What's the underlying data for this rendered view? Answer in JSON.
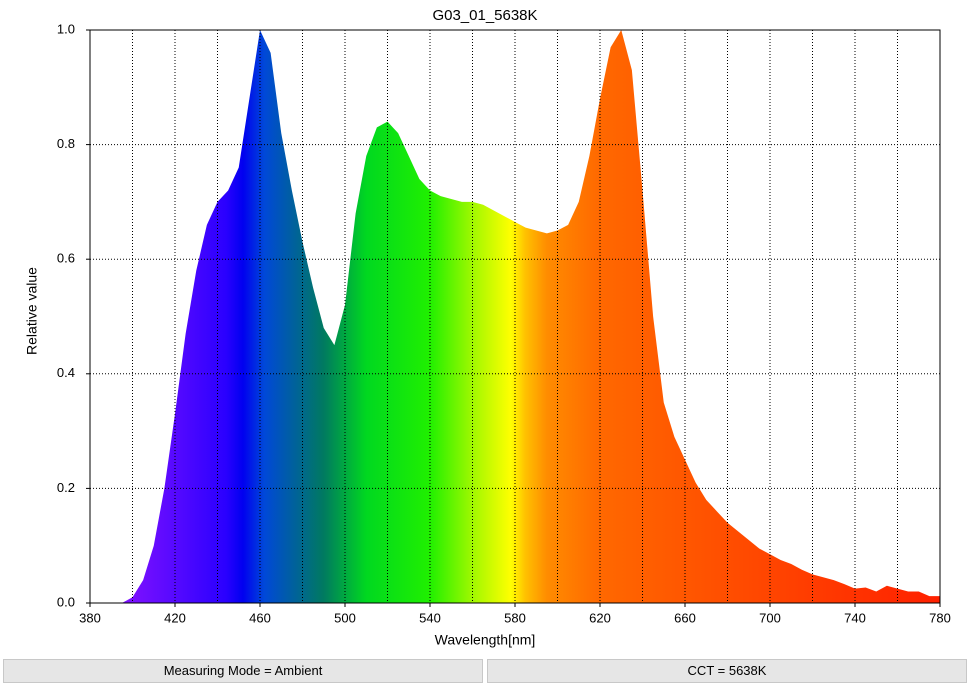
{
  "chart_data": {
    "type": "area",
    "title": "G03_01_5638K",
    "x_label": "Wavelength[nm]",
    "y_label": "Relative value",
    "x": [
      380,
      385,
      390,
      395,
      400,
      405,
      410,
      415,
      420,
      425,
      430,
      435,
      440,
      445,
      450,
      455,
      460,
      465,
      470,
      475,
      480,
      485,
      490,
      495,
      500,
      505,
      510,
      515,
      520,
      525,
      530,
      535,
      540,
      545,
      550,
      555,
      560,
      565,
      570,
      575,
      580,
      585,
      590,
      595,
      600,
      605,
      610,
      615,
      620,
      625,
      630,
      635,
      640,
      645,
      650,
      655,
      660,
      665,
      670,
      675,
      680,
      685,
      690,
      695,
      700,
      705,
      710,
      715,
      720,
      725,
      730,
      735,
      740,
      745,
      750,
      755,
      760,
      765,
      770,
      775,
      780
    ],
    "values": [
      0,
      0,
      0,
      0,
      0.01,
      0.04,
      0.1,
      0.2,
      0.33,
      0.47,
      0.58,
      0.66,
      0.7,
      0.72,
      0.76,
      0.88,
      1.0,
      0.96,
      0.82,
      0.72,
      0.63,
      0.55,
      0.48,
      0.45,
      0.52,
      0.68,
      0.78,
      0.83,
      0.84,
      0.82,
      0.78,
      0.74,
      0.72,
      0.71,
      0.705,
      0.7,
      0.7,
      0.695,
      0.685,
      0.675,
      0.665,
      0.655,
      0.65,
      0.645,
      0.65,
      0.66,
      0.7,
      0.78,
      0.88,
      0.97,
      1.0,
      0.93,
      0.72,
      0.5,
      0.35,
      0.29,
      0.25,
      0.21,
      0.18,
      0.16,
      0.14,
      0.125,
      0.11,
      0.095,
      0.085,
      0.075,
      0.068,
      0.058,
      0.05,
      0.045,
      0.04,
      0.033,
      0.025,
      0.027,
      0.02,
      0.03,
      0.025,
      0.02,
      0.02,
      0.012,
      0.012
    ],
    "xlim": [
      380,
      780
    ],
    "ylim": [
      0,
      1
    ],
    "xticks": [
      380,
      420,
      460,
      500,
      540,
      580,
      620,
      660,
      700,
      740,
      780
    ],
    "yticks": [
      {
        "value": 0,
        "label": "0.0"
      },
      0.2,
      0.4,
      0.6,
      0.8,
      {
        "value": 1,
        "label": "1.0"
      }
    ],
    "grid": true
  },
  "status_bar": {
    "left": "Measuring Mode = Ambient",
    "right": "CCT = 5638K"
  }
}
